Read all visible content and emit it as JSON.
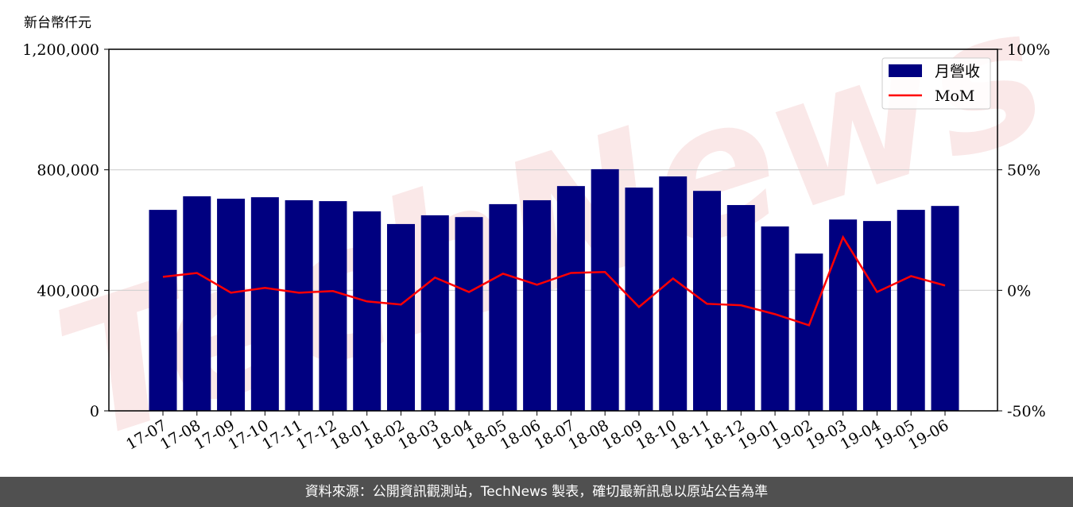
{
  "chart_data": {
    "type": "bar",
    "title": "",
    "ylabel": "新台幣仟元",
    "xlabel": "",
    "categories": [
      "17-07",
      "17-08",
      "17-09",
      "17-10",
      "17-11",
      "17-12",
      "18-01",
      "18-02",
      "18-03",
      "18-04",
      "18-05",
      "18-06",
      "18-07",
      "18-08",
      "18-09",
      "18-10",
      "18-11",
      "18-12",
      "19-01",
      "19-02",
      "19-03",
      "19-04",
      "19-05",
      "19-06"
    ],
    "series": [
      {
        "name": "月營收",
        "type": "bar",
        "axis": "left",
        "color": "#000080",
        "values": [
          667000,
          712000,
          704000,
          709000,
          699000,
          696000,
          662000,
          620000,
          649000,
          643000,
          686000,
          699000,
          746000,
          802000,
          741000,
          778000,
          730000,
          683000,
          612000,
          522000,
          635000,
          630000,
          667000,
          680000
        ]
      },
      {
        "name": "MoM",
        "type": "line",
        "axis": "right",
        "color": "#ff0000",
        "unit": "%",
        "values": [
          5.6,
          7.2,
          -1.0,
          1.0,
          -1.0,
          -0.3,
          -4.6,
          -5.9,
          5.3,
          -0.7,
          6.9,
          2.3,
          7.2,
          7.6,
          -6.9,
          4.9,
          -5.6,
          -6.2,
          -9.9,
          -14.5,
          22.0,
          -0.7,
          5.9,
          2.0
        ]
      }
    ],
    "ylim": [
      0,
      1200000
    ],
    "y2lim": [
      -50,
      100
    ],
    "yticks": [
      "0",
      "400,000",
      "800,000",
      "1,200,000"
    ],
    "y2ticks": [
      "-50%",
      "0%",
      "50%",
      "100%"
    ],
    "grid": true,
    "legend": "top-right"
  },
  "watermark": "TechNews",
  "footer": "資料來源：公開資訊觀測站，TechNews 製表，確切最新訊息以原站公告為準"
}
